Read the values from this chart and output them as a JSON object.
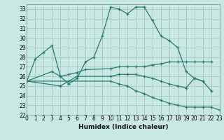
{
  "xlabel": "Humidex (Indice chaleur)",
  "xlim": [
    0,
    23
  ],
  "ylim": [
    22,
    33.5
  ],
  "yticks": [
    22,
    23,
    24,
    25,
    26,
    27,
    28,
    29,
    30,
    31,
    32,
    33
  ],
  "xticks": [
    0,
    1,
    2,
    3,
    4,
    5,
    6,
    7,
    8,
    9,
    10,
    11,
    12,
    13,
    14,
    15,
    16,
    17,
    18,
    19,
    20,
    21,
    22,
    23
  ],
  "background_color": "#c8e8e4",
  "grid_color": "#a0bcb8",
  "line_color": "#2a7a6e",
  "lines": [
    {
      "x": [
        0,
        1,
        2,
        3,
        4,
        5,
        6,
        7,
        8,
        9,
        10,
        11,
        12,
        13,
        14,
        15,
        16,
        17,
        18,
        19,
        20,
        21,
        22
      ],
      "y": [
        25.5,
        27.8,
        28.5,
        29.2,
        26.0,
        25.2,
        25.8,
        27.5,
        28.0,
        30.2,
        33.2,
        33.0,
        32.5,
        33.2,
        33.2,
        31.8,
        30.2,
        29.7,
        29.0,
        26.5,
        25.8,
        25.5,
        24.5
      ]
    },
    {
      "x": [
        0,
        3,
        4,
        5,
        6,
        7,
        10,
        11,
        12,
        13,
        14,
        15,
        16,
        17,
        18,
        19,
        20,
        21,
        22
      ],
      "y": [
        25.5,
        26.5,
        26.0,
        26.2,
        26.4,
        26.7,
        26.8,
        27.0,
        27.0,
        27.0,
        27.0,
        27.2,
        27.3,
        27.5,
        27.5,
        27.5,
        27.5,
        27.5,
        27.5
      ]
    },
    {
      "x": [
        0,
        4,
        5,
        6,
        10,
        11,
        12,
        13,
        14,
        15,
        16,
        17,
        18,
        19,
        20,
        21
      ],
      "y": [
        25.5,
        25.0,
        25.5,
        26.0,
        26.0,
        26.2,
        26.2,
        26.2,
        26.0,
        25.8,
        25.5,
        25.2,
        25.0,
        24.8,
        25.8,
        25.5
      ]
    },
    {
      "x": [
        0,
        10,
        11,
        12,
        13,
        14,
        15,
        16,
        17,
        18,
        19,
        20,
        21,
        22,
        23
      ],
      "y": [
        25.5,
        25.5,
        25.2,
        25.0,
        24.5,
        24.2,
        23.8,
        23.5,
        23.2,
        23.0,
        22.8,
        22.8,
        22.8,
        22.8,
        22.5
      ]
    }
  ]
}
